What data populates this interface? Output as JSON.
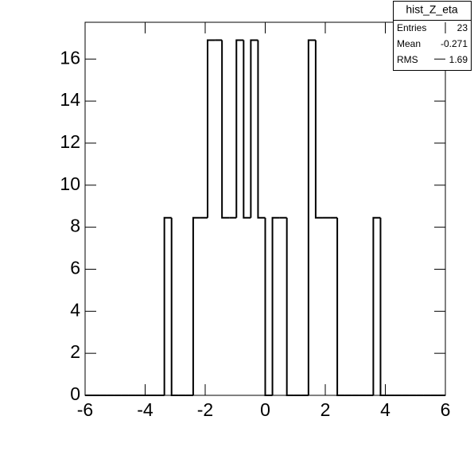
{
  "chart_data": {
    "type": "histogram",
    "bins": [
      -6,
      -5.76,
      -5.52,
      -5.28,
      -5.04,
      -4.8,
      -4.56,
      -4.32,
      -4.08,
      -3.84,
      -3.6,
      -3.36,
      -3.12,
      -2.88,
      -2.64,
      -2.4,
      -2.16,
      -1.92,
      -1.68,
      -1.44,
      -1.2,
      -0.96,
      -0.72,
      -0.48,
      -0.24,
      0,
      0.24,
      0.48,
      0.72,
      0.96,
      1.2,
      1.44,
      1.68,
      1.92,
      2.16,
      2.4,
      2.64,
      2.88,
      3.12,
      3.36,
      3.6,
      3.84,
      4.08,
      4.32,
      4.56,
      4.8,
      5.04,
      5.28,
      5.52,
      5.76,
      6
    ],
    "values": [
      0,
      0,
      0,
      0,
      0,
      0,
      0,
      0,
      0,
      0,
      0,
      8.45,
      0,
      0,
      0,
      8.45,
      8.45,
      16.9,
      16.9,
      8.45,
      8.45,
      16.9,
      8.45,
      16.9,
      8.45,
      0,
      8.45,
      8.45,
      0,
      0,
      0,
      16.9,
      8.45,
      8.45,
      8.45,
      0,
      0,
      0,
      0,
      0,
      8.45,
      0,
      0,
      0,
      0,
      0,
      0,
      0,
      0,
      0
    ],
    "color": "#000000",
    "xlim": [
      -6,
      6
    ],
    "xticks": [
      -6,
      -4,
      -2,
      0,
      2,
      4,
      6
    ],
    "ylim": [
      0,
      17.75
    ],
    "yticks": [
      0,
      2,
      4,
      6,
      8,
      10,
      12,
      14,
      16
    ],
    "stats": {
      "title": "hist_Z_eta",
      "rows": [
        {
          "label": "Entries",
          "value": 23
        },
        {
          "label": "Mean",
          "value": -0.271
        },
        {
          "label": "RMS",
          "value": 1.69
        }
      ]
    }
  }
}
